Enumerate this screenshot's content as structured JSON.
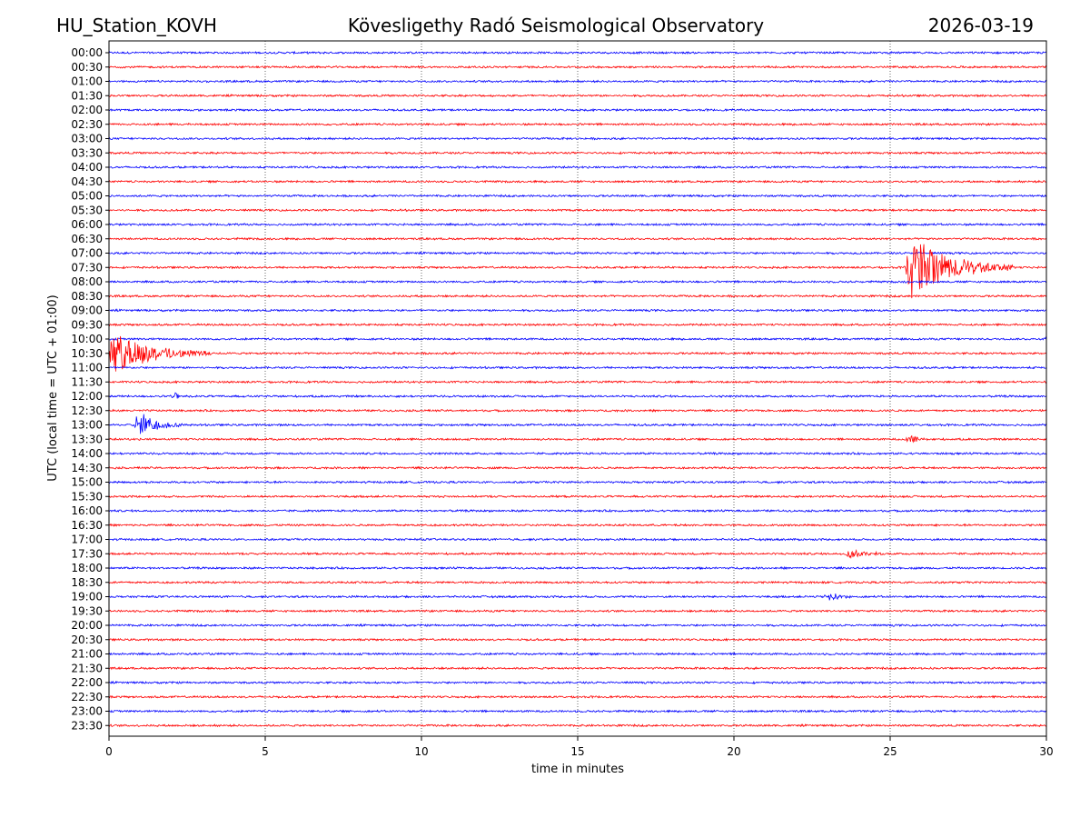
{
  "header": {
    "station": "HU_Station_KOVH",
    "observatory": "Kövesligethy Radó Seismological Observatory",
    "date": "2026-03-19"
  },
  "chart_data": {
    "type": "line",
    "title": "Kövesligethy Radó Seismological Observatory",
    "xlabel": "time in minutes",
    "ylabel": "UTC (local time = UTC + 01:00)",
    "xlim": [
      0,
      30
    ],
    "x_ticks": [
      0,
      5,
      10,
      15,
      20,
      25,
      30
    ],
    "grid": "vertical dotted at x ticks",
    "row_labels": [
      "00:00",
      "00:30",
      "01:00",
      "01:30",
      "02:00",
      "02:30",
      "03:00",
      "03:30",
      "04:00",
      "04:30",
      "05:00",
      "05:30",
      "06:00",
      "06:30",
      "07:00",
      "07:30",
      "08:00",
      "08:30",
      "09:00",
      "09:30",
      "10:00",
      "10:30",
      "11:00",
      "11:30",
      "12:00",
      "12:30",
      "13:00",
      "13:30",
      "14:00",
      "14:30",
      "15:00",
      "15:30",
      "16:00",
      "16:30",
      "17:00",
      "17:30",
      "18:00",
      "18:30",
      "19:00",
      "19:30",
      "20:00",
      "20:30",
      "21:00",
      "21:30",
      "22:00",
      "22:30",
      "23:00",
      "23:30"
    ],
    "colors": {
      "even_rows": "#0000ff",
      "odd_rows": "#ff0000"
    },
    "events": [
      {
        "row": "07:30",
        "minute": 25.5,
        "amplitude": 4.2,
        "duration": 3.5
      },
      {
        "row": "10:30",
        "minute": 0.0,
        "amplitude": 2.6,
        "duration": 3.5
      },
      {
        "row": "13:00",
        "minute": 0.8,
        "amplitude": 1.8,
        "duration": 1.6
      },
      {
        "row": "13:30",
        "minute": 25.5,
        "amplitude": 0.5,
        "duration": 1.0
      },
      {
        "row": "17:30",
        "minute": 23.6,
        "amplitude": 0.7,
        "duration": 1.2
      },
      {
        "row": "19:00",
        "minute": 22.9,
        "amplitude": 0.6,
        "duration": 1.0
      },
      {
        "row": "12:00",
        "minute": 2.0,
        "amplitude": 0.5,
        "duration": 0.3
      },
      {
        "row": "10:00",
        "minute": 29.9,
        "amplitude": 0.5,
        "duration": 0.2
      }
    ]
  }
}
